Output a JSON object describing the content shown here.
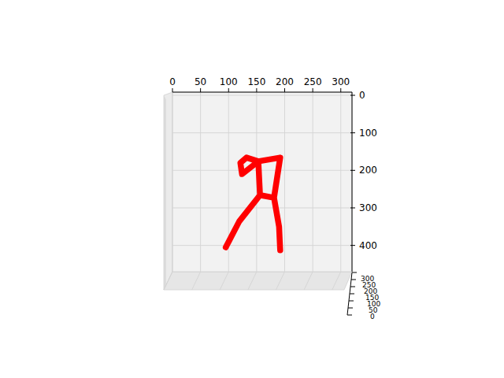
{
  "chart_data": {
    "type": "line",
    "series": [
      {
        "color": "#ff0000",
        "x": [
          95,
          119,
          156,
          181,
          190,
          192,
          null,
          156,
          153,
          null,
          181,
          192,
          153,
          132,
          121,
          124,
          153
        ],
        "values": [
          405,
          336,
          266,
          273,
          350,
          413,
          null,
          266,
          176,
          null,
          273,
          166,
          176,
          166,
          180,
          210,
          176
        ]
      }
    ],
    "xlim": [
      0,
      320
    ],
    "xticks": [
      0,
      50,
      100,
      150,
      200,
      250,
      300
    ],
    "ylim": [
      470,
      0
    ],
    "yticks": [
      0,
      100,
      200,
      300,
      400
    ],
    "zlim": [
      0,
      300
    ],
    "zticks": [
      0,
      50,
      100,
      150,
      200,
      250,
      300
    ],
    "grid": true
  }
}
